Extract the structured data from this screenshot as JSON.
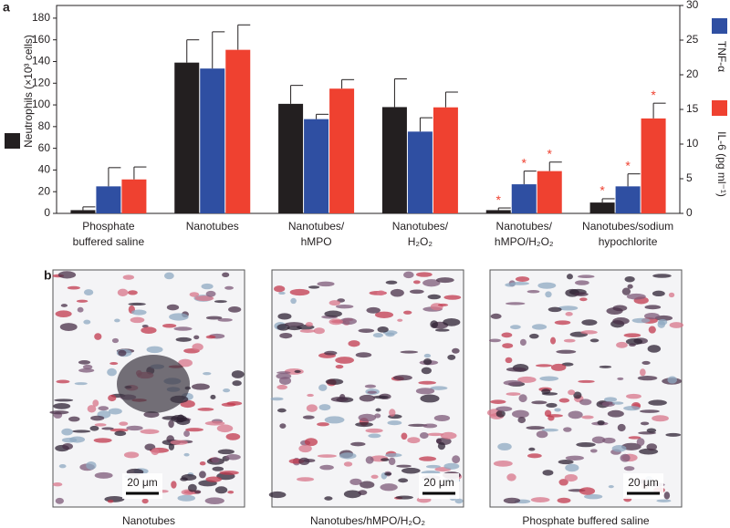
{
  "panel_labels": [
    "a",
    "b"
  ],
  "chart_data": {
    "type": "bar",
    "categories": [
      "Phosphate\nbuffered saline",
      "Nanotubes",
      "Nanotubes/\nhMPO",
      "Nanotubes/\nH₂O₂",
      "Nanotubes/\nhMPO/H₂O₂",
      "Nanotubes/sodium\nhypochlorite"
    ],
    "series": [
      {
        "name": "Neutrophils (×10³ cells)",
        "color": "#231f20",
        "axis": "y",
        "values": [
          3,
          139,
          101,
          98,
          3,
          10
        ],
        "errors": [
          3,
          21,
          17,
          26,
          2,
          3.5
        ],
        "significant": [
          false,
          false,
          false,
          false,
          true,
          true
        ]
      },
      {
        "name": "TNF-α",
        "color": "#2f4fa2",
        "axis": "y2",
        "values": [
          3.9,
          20.9,
          13.6,
          11.8,
          4.2,
          3.9
        ],
        "errors": [
          2.7,
          5.3,
          0.7,
          2.0,
          1.9,
          1.8
        ],
        "significant": [
          false,
          false,
          false,
          false,
          true,
          true
        ]
      },
      {
        "name": "IL-6 (pg ml⁻¹)",
        "color": "#ef4130",
        "axis": "y2",
        "values": [
          4.9,
          23.6,
          18.0,
          15.3,
          6.1,
          13.7
        ],
        "errors": [
          1.8,
          3.6,
          1.3,
          2.2,
          1.3,
          2.2
        ],
        "significant": [
          false,
          false,
          false,
          false,
          true,
          true
        ]
      }
    ],
    "significance_label": "*",
    "ylim": [
      0,
      190
    ],
    "yticks": [
      0,
      20,
      40,
      60,
      80,
      100,
      120,
      140,
      160,
      180
    ],
    "y2lim": [
      0,
      30
    ],
    "y2ticks": [
      0,
      5,
      10,
      15,
      20,
      25,
      30
    ]
  },
  "panel_b": {
    "images": [
      {
        "caption": "Nanotubes",
        "scale_bar": "20 μm"
      },
      {
        "caption": "Nanotubes/hMPO/H₂O₂",
        "scale_bar": "20 μm"
      },
      {
        "caption": "Phosphate buffered saline",
        "scale_bar": "20 μm"
      }
    ]
  }
}
